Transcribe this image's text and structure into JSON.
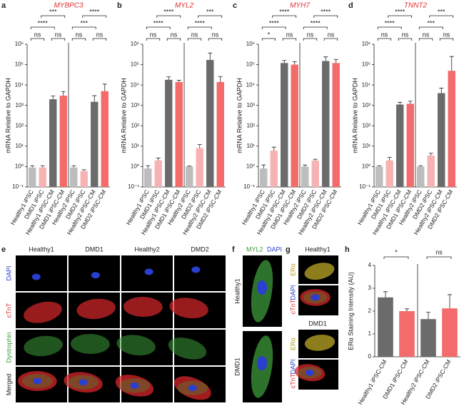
{
  "chart_data": [
    {
      "type": "bar",
      "title": "MYBPC3",
      "y_label": "mRNA Relative to GAPDH",
      "log_scale": true,
      "categories": [
        "Healthy1 iPSC",
        "DMD1 iPSC",
        "Healthy1 iPSC-CM",
        "DMD1 iPSC-CM",
        "Healthy2 iPSC",
        "DMD2 iPSC",
        "Healthy2 iPSC-CM",
        "DMD2 iPSC-CM"
      ],
      "values": [
        0.9,
        0.9,
        2000,
        3000,
        0.9,
        0.6,
        1500,
        5000
      ],
      "errors": [
        0.2,
        0.2,
        900,
        1800,
        0.2,
        0.1,
        1500,
        6000
      ],
      "colors": [
        "#bdbdbd",
        "#f7b3b3",
        "#6b6b6b",
        "#f36b6b",
        "#bdbdbd",
        "#f7b3b3",
        "#6b6b6b",
        "#f36b6b"
      ],
      "significance": [
        "***",
        "****",
        "ns",
        "ns",
        "****",
        "***",
        "ns",
        "ns"
      ],
      "ylim": [
        0.1,
        1000000
      ],
      "yticks": [
        {
          "value": 0.1,
          "label": "10⁻¹"
        },
        {
          "value": 1,
          "label": "10⁰"
        },
        {
          "value": 10,
          "label": "10¹"
        },
        {
          "value": 100,
          "label": "10²"
        },
        {
          "value": 1000,
          "label": "10³"
        },
        {
          "value": 10000,
          "label": "10⁴"
        },
        {
          "value": 100000,
          "label": "10⁵"
        },
        {
          "value": 1000000,
          "label": "10⁶"
        }
      ]
    },
    {
      "type": "bar",
      "title": "MYL2",
      "y_label": "mRNA Relative to GAPDH",
      "log_scale": true,
      "categories": [
        "Healthy1 iPSC",
        "DMD1 iPSC",
        "Healthy1 iPSC-CM",
        "DMD1 iPSC-CM",
        "Healthy2 iPSC",
        "DMD2 iPSC",
        "Healthy2 iPSC-CM",
        "DMD2 iPSC-CM"
      ],
      "values": [
        0.8,
        2,
        18000,
        14000,
        1,
        8,
        170000,
        14000
      ],
      "errors": [
        0.3,
        0.6,
        7000,
        3000,
        0.05,
        4,
        200000,
        12000
      ],
      "colors": [
        "#bdbdbd",
        "#f7b3b3",
        "#6b6b6b",
        "#f36b6b",
        "#bdbdbd",
        "#f7b3b3",
        "#6b6b6b",
        "#f36b6b"
      ],
      "significance": [
        "****",
        "****",
        "ns",
        "ns",
        "***",
        "****",
        "ns",
        "ns"
      ],
      "ylim": [
        0.1,
        1000000
      ],
      "yticks": [
        {
          "value": 0.1,
          "label": "10⁻¹"
        },
        {
          "value": 1,
          "label": "10⁰"
        },
        {
          "value": 10,
          "label": "10¹"
        },
        {
          "value": 100,
          "label": "10²"
        },
        {
          "value": 1000,
          "label": "10³"
        },
        {
          "value": 10000,
          "label": "10⁴"
        },
        {
          "value": 100000,
          "label": "10⁵"
        },
        {
          "value": 1000000,
          "label": "10⁶"
        }
      ]
    },
    {
      "type": "bar",
      "title": "MYH7",
      "y_label": "mRNA Relative to GAPDH",
      "log_scale": true,
      "categories": [
        "Healthy1 iPSC",
        "DMD1 iPSC",
        "Healthy1 iPSC-CM",
        "DMD1 iPSC-CM",
        "Healthy2 iPSC",
        "DMD2 iPSC",
        "Healthy2 iPSC-CM",
        "DMD2 iPSC-CM"
      ],
      "values": [
        0.8,
        6,
        120000,
        100000,
        1,
        2,
        150000,
        120000
      ],
      "errors": [
        0.4,
        3,
        40000,
        40000,
        0.2,
        0.3,
        90000,
        60000
      ],
      "colors": [
        "#bdbdbd",
        "#f7b3b3",
        "#6b6b6b",
        "#f36b6b",
        "#bdbdbd",
        "#f7b3b3",
        "#6b6b6b",
        "#f36b6b"
      ],
      "significance": [
        "****",
        "****",
        "*",
        "ns",
        "****",
        "****",
        "ns",
        "ns"
      ],
      "ylim": [
        0.1,
        1000000
      ],
      "yticks": [
        {
          "value": 0.1,
          "label": "10⁻¹"
        },
        {
          "value": 1,
          "label": "10⁰"
        },
        {
          "value": 10,
          "label": "10¹"
        },
        {
          "value": 100,
          "label": "10²"
        },
        {
          "value": 1000,
          "label": "10³"
        },
        {
          "value": 10000,
          "label": "10⁴"
        },
        {
          "value": 100000,
          "label": "10⁵"
        },
        {
          "value": 1000000,
          "label": "10⁶"
        }
      ]
    },
    {
      "type": "bar",
      "title": "TNNT2",
      "y_label": "mRNA Relative to GAPDH",
      "log_scale": true,
      "categories": [
        "Healthy1 iPSC",
        "DMD1 iPSC",
        "Healthy1 iPSC-CM",
        "DMD1 iPSC-CM",
        "Healthy2 iPSC",
        "DMD2 iPSC",
        "Healthy2 iPSC-CM",
        "DMD2 iPSC-CM"
      ],
      "values": [
        1,
        2,
        1100,
        1200,
        1,
        3.5,
        4000,
        50000
      ],
      "errors": [
        0.1,
        0.8,
        300,
        400,
        0.1,
        1,
        3000,
        200000
      ],
      "colors": [
        "#bdbdbd",
        "#f7b3b3",
        "#6b6b6b",
        "#f36b6b",
        "#bdbdbd",
        "#f7b3b3",
        "#6b6b6b",
        "#f36b6b"
      ],
      "significance": [
        "****",
        "****",
        "ns",
        "ns",
        "***",
        "***",
        "ns",
        "ns"
      ],
      "ylim": [
        0.1,
        1000000
      ],
      "yticks": [
        {
          "value": 0.1,
          "label": "10⁻¹"
        },
        {
          "value": 1,
          "label": "10⁰"
        },
        {
          "value": 10,
          "label": "10¹"
        },
        {
          "value": 100,
          "label": "10²"
        },
        {
          "value": 1000,
          "label": "10³"
        },
        {
          "value": 10000,
          "label": "10⁴"
        },
        {
          "value": 100000,
          "label": "10⁵"
        },
        {
          "value": 1000000,
          "label": "10⁶"
        }
      ]
    },
    {
      "type": "bar",
      "y_label": "ERα Staining Intensity (AU)",
      "log_scale": false,
      "categories": [
        "Healthy1 iPSC-CM",
        "DMD1 iPSC-CM",
        "Healthy2 iPSC-CM",
        "DMD2 iPSC-CM"
      ],
      "values": [
        2.6,
        2.0,
        1.65,
        2.12
      ],
      "errors": [
        0.25,
        0.1,
        0.3,
        0.6
      ],
      "colors": [
        "#6b6b6b",
        "#f36b6b",
        "#6b6b6b",
        "#f36b6b"
      ],
      "significance": [
        "*",
        "ns"
      ],
      "ylim": [
        0,
        4
      ],
      "yticks": [
        0,
        1,
        2,
        3,
        4
      ]
    }
  ],
  "figure": {
    "panel_letters": [
      "a",
      "b",
      "c",
      "d",
      "e",
      "f",
      "g",
      "h"
    ],
    "e": {
      "columns": [
        "Healthy1",
        "DMD1",
        "Healthy2",
        "DMD2"
      ],
      "rows": [
        "DAPI",
        "cTnT",
        "Dystrophin",
        "Merged"
      ]
    },
    "f": {
      "channels": [
        "MYL2",
        "DAPI"
      ],
      "rows": [
        "Healthy1",
        "DMD1"
      ]
    },
    "g": {
      "groups": [
        "Healthy1",
        "DMD1"
      ],
      "channels": [
        "ERα",
        "cTnT",
        "DAPI"
      ]
    }
  }
}
